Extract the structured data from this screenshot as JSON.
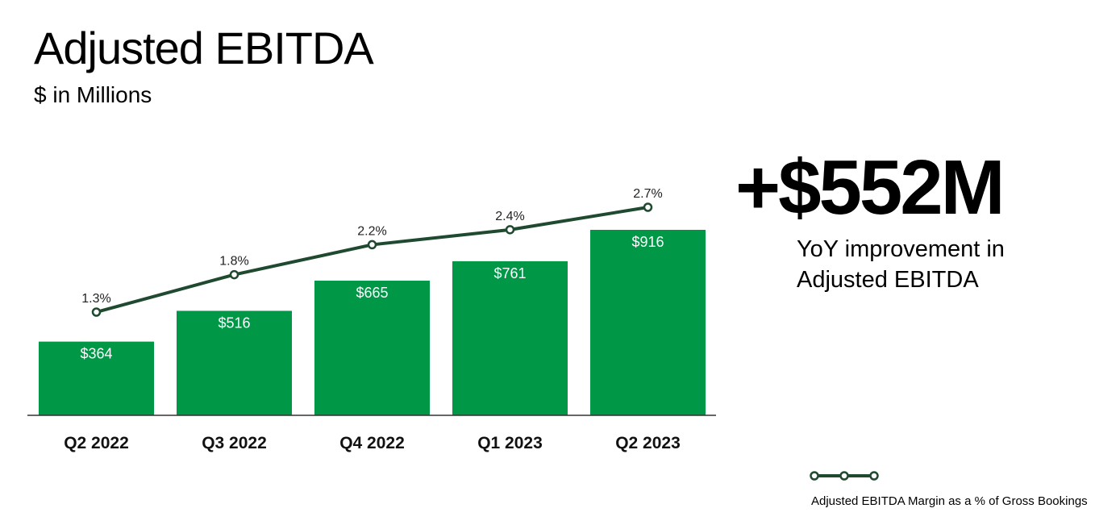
{
  "header": {
    "title": "Adjusted EBITDA",
    "subtitle": "$ in Millions"
  },
  "callout": {
    "value": "+$552M",
    "line1": "YoY improvement in",
    "line2": "Adjusted EBITDA"
  },
  "legend": {
    "label": "Adjusted EBITDA Margin as a % of Gross Bookings"
  },
  "colors": {
    "bar": "#009746",
    "line": "#1f4a30",
    "axis": "#333333"
  },
  "chart_data": {
    "type": "bar",
    "categories": [
      "Q2 2022",
      "Q3 2022",
      "Q4 2022",
      "Q1 2023",
      "Q2 2023"
    ],
    "series": [
      {
        "type": "bar",
        "values": [
          364,
          516,
          665,
          761,
          916
        ],
        "labels": [
          "$364",
          "$516",
          "$665",
          "$761",
          "$916"
        ]
      },
      {
        "type": "line",
        "name": "Adjusted EBITDA Margin as a % of Gross Bookings",
        "values": [
          1.3,
          1.8,
          2.2,
          2.4,
          2.7
        ],
        "labels": [
          "1.3%",
          "1.8%",
          "2.2%",
          "2.4%",
          "2.7%"
        ]
      }
    ],
    "title": "Adjusted EBITDA",
    "subtitle": "$ in Millions",
    "grid": false,
    "legend_position": "bottom-right"
  }
}
